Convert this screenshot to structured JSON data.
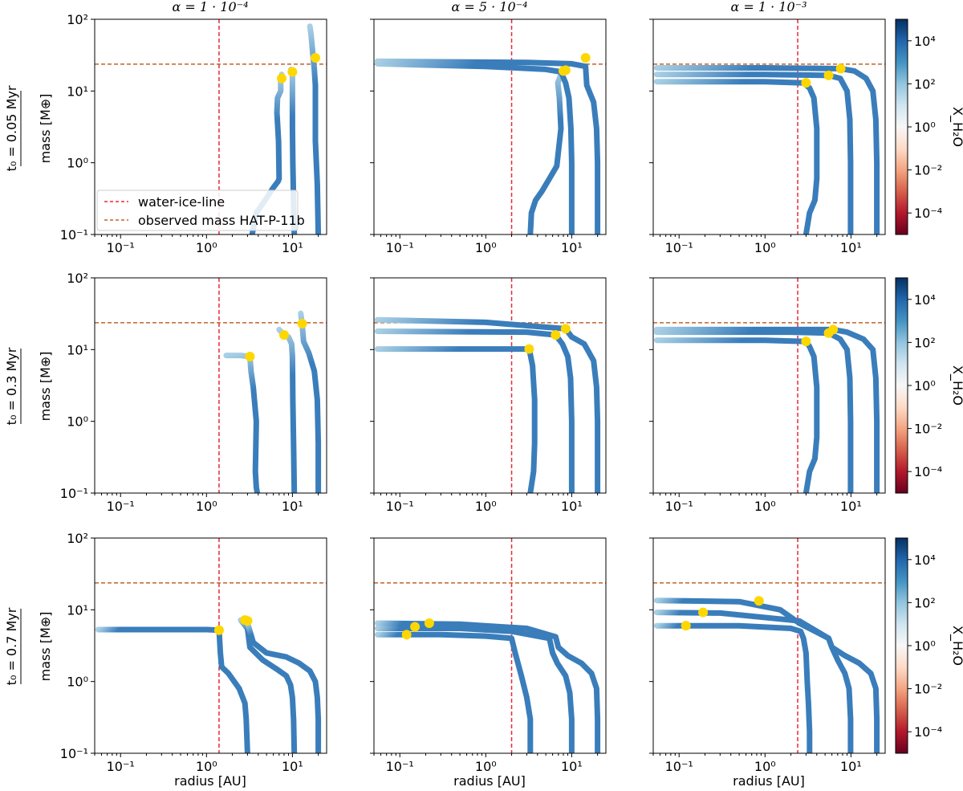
{
  "figure": {
    "column_titles": [
      "α = 1 · 10⁻⁴",
      "α = 5 · 10⁻⁴",
      "α = 1 · 10⁻³"
    ],
    "row_titles": [
      "t₀ = 0.05 Myr",
      "t₀ = 0.3 Myr",
      "t₀ = 0.7 Myr"
    ],
    "xlabel": "radius [AU]",
    "ylabel": "mass [M⊕]",
    "colorbar_label": "X_H₂O",
    "legend": {
      "ice_line": "water-ice-line",
      "observed": "observed mass HAT-P-11b"
    },
    "colors": {
      "ice_line": "#e8293a",
      "observed": "#c0642a",
      "track_dark": "#3a7dbb",
      "track_light": "#a8cfe4",
      "endpoint": "#ffd700"
    }
  },
  "chart_data": [
    {
      "type": "line",
      "row": 0,
      "col": 0,
      "xscale": "log",
      "yscale": "log",
      "xlim": [
        0.05,
        25
      ],
      "ylim": [
        0.1,
        100
      ],
      "ice_line_x": 1.4,
      "observed_mass_y": 23.7,
      "series": [
        {
          "x": [
            3.4,
            3.8,
            4.8,
            6.0,
            6.8,
            7.0,
            6.9,
            6.6,
            6.7,
            7.3,
            7.3,
            7.3,
            7.5
          ],
          "y": [
            0.1,
            0.2,
            0.3,
            0.45,
            0.55,
            0.6,
            2,
            5,
            8,
            10,
            13,
            15,
            17
          ]
        },
        {
          "x": [
            10.5,
            10.3,
            10.1,
            10.0,
            10.0,
            10.0,
            10.0,
            9.9,
            9.6
          ],
          "y": [
            0.1,
            0.3,
            1,
            3,
            8,
            12,
            16,
            18,
            20
          ]
        },
        {
          "x": [
            20,
            19.5,
            18.5,
            18.5,
            18.5,
            18.0,
            17.0,
            16.5,
            16.0
          ],
          "y": [
            0.1,
            0.5,
            2,
            6,
            12,
            20,
            40,
            60,
            80
          ]
        }
      ],
      "endpoints": [
        {
          "x": 7.5,
          "y": 15
        },
        {
          "x": 10.0,
          "y": 18.5
        },
        {
          "x": 18.5,
          "y": 29
        }
      ]
    },
    {
      "type": "line",
      "row": 0,
      "col": 1,
      "xscale": "log",
      "yscale": "log",
      "xlim": [
        0.05,
        25
      ],
      "ylim": [
        0.1,
        100
      ],
      "ice_line_x": 2.0,
      "observed_mass_y": 23.7,
      "series": [
        {
          "x": [
            3.3,
            3.4,
            3.8,
            4.5,
            5.5,
            6.7,
            7.5,
            7.2,
            6.9,
            7.5,
            8.0
          ],
          "y": [
            0.1,
            0.2,
            0.3,
            0.4,
            0.6,
            0.9,
            3,
            8,
            13,
            17,
            19
          ]
        },
        {
          "x": [
            10.0,
            10.0,
            9.8,
            9.3,
            8.5,
            7.5,
            5.0,
            1.0,
            0.2,
            0.055
          ],
          "y": [
            0.1,
            1,
            3,
            8,
            13,
            18.5,
            20,
            22,
            23,
            24
          ]
        },
        {
          "x": [
            20,
            20,
            19.5,
            18,
            15,
            14.5,
            10,
            3,
            0.3,
            0.055
          ],
          "y": [
            0.1,
            1,
            3,
            7,
            12,
            22,
            24,
            25,
            25.5,
            26
          ]
        }
      ],
      "endpoints": [
        {
          "x": 8.0,
          "y": 19
        },
        {
          "x": 8.5,
          "y": 19.5
        },
        {
          "x": 14.5,
          "y": 29
        }
      ]
    },
    {
      "type": "line",
      "row": 0,
      "col": 2,
      "xscale": "log",
      "yscale": "log",
      "xlim": [
        0.05,
        25
      ],
      "ylim": [
        0.1,
        100
      ],
      "ice_line_x": 2.4,
      "observed_mass_y": 23.7,
      "series": [
        {
          "x": [
            3.0,
            3.3,
            3.8,
            4.0,
            4.0,
            3.7,
            3.3,
            2.8,
            1.0,
            0.055
          ],
          "y": [
            0.1,
            0.2,
            0.3,
            0.6,
            3,
            8,
            11,
            13,
            13.5,
            13.5
          ]
        },
        {
          "x": [
            9.9,
            9.9,
            9.7,
            9.0,
            7.5,
            5.5,
            1.0,
            0.055
          ],
          "y": [
            0.1,
            1,
            4,
            10,
            15,
            16.5,
            17,
            17
          ]
        },
        {
          "x": [
            20,
            20,
            19.5,
            18,
            15,
            11,
            7.6,
            1.0,
            0.055
          ],
          "y": [
            0.1,
            1,
            4,
            10,
            15,
            19,
            20.5,
            21,
            21
          ]
        }
      ],
      "endpoints": [
        {
          "x": 3.0,
          "y": 13
        },
        {
          "x": 5.5,
          "y": 16.5
        },
        {
          "x": 7.6,
          "y": 20.5
        }
      ]
    },
    {
      "type": "line",
      "row": 1,
      "col": 0,
      "xscale": "log",
      "yscale": "log",
      "xlim": [
        0.05,
        25
      ],
      "ylim": [
        0.1,
        100
      ],
      "ice_line_x": 1.4,
      "observed_mass_y": 23.7,
      "series": [
        {
          "x": [
            3.9,
            3.8,
            3.7,
            3.8,
            3.5,
            3.3,
            3.2,
            2.5,
            1.7
          ],
          "y": [
            0.1,
            0.12,
            0.2,
            1,
            3,
            5,
            8,
            8.3,
            8.3
          ]
        },
        {
          "x": [
            10.5,
            10.3,
            10.1,
            10.0,
            9.8,
            9.0,
            8.0,
            7.0
          ],
          "y": [
            0.1,
            0.5,
            2,
            8,
            12,
            15,
            16,
            19
          ]
        },
        {
          "x": [
            20,
            20,
            19.5,
            18,
            15.5,
            13.5,
            13.0,
            12.5
          ],
          "y": [
            0.1,
            0.5,
            2,
            5,
            9,
            13,
            22,
            32
          ]
        }
      ],
      "endpoints": [
        {
          "x": 3.2,
          "y": 8
        },
        {
          "x": 8.0,
          "y": 16
        },
        {
          "x": 13.0,
          "y": 23
        }
      ]
    },
    {
      "type": "line",
      "row": 1,
      "col": 1,
      "xscale": "log",
      "yscale": "log",
      "xlim": [
        0.05,
        25
      ],
      "ylim": [
        0.1,
        100
      ],
      "ice_line_x": 2.0,
      "observed_mass_y": 23.7,
      "series": [
        {
          "x": [
            3.3,
            3.6,
            3.7,
            3.7,
            3.5,
            3.2,
            1.0,
            0.055
          ],
          "y": [
            0.1,
            0.2,
            0.5,
            2,
            6,
            10.2,
            10.2,
            10.2
          ]
        },
        {
          "x": [
            10.0,
            10.0,
            9.7,
            9.0,
            7.8,
            6.5,
            3.0,
            0.055
          ],
          "y": [
            0.1,
            1,
            4,
            8,
            12,
            16,
            17.5,
            18
          ]
        },
        {
          "x": [
            20,
            20,
            19.5,
            18,
            14,
            10,
            8.5,
            1.0,
            0.055
          ],
          "y": [
            0.1,
            1,
            3,
            7,
            12,
            15,
            19.5,
            24,
            26
          ]
        }
      ],
      "endpoints": [
        {
          "x": 3.2,
          "y": 10.2
        },
        {
          "x": 6.5,
          "y": 16
        },
        {
          "x": 8.5,
          "y": 19.5
        }
      ]
    },
    {
      "type": "line",
      "row": 1,
      "col": 2,
      "xscale": "log",
      "yscale": "log",
      "xlim": [
        0.05,
        25
      ],
      "ylim": [
        0.1,
        100
      ],
      "ice_line_x": 2.4,
      "observed_mass_y": 23.7,
      "series": [
        {
          "x": [
            3.0,
            3.3,
            3.8,
            4.0,
            4.0,
            3.7,
            3.3,
            3.0,
            1.0,
            0.055
          ],
          "y": [
            0.1,
            0.2,
            0.3,
            0.6,
            3,
            8,
            11,
            13,
            13.5,
            13.5
          ]
        },
        {
          "x": [
            9.9,
            9.9,
            9.7,
            9.0,
            7.5,
            5.5,
            2.0,
            0.055
          ],
          "y": [
            0.1,
            1,
            4,
            10,
            14,
            17,
            17.5,
            17.5
          ]
        },
        {
          "x": [
            20,
            20,
            19.5,
            18,
            14,
            9,
            6.2,
            2.0,
            0.055
          ],
          "y": [
            0.1,
            1,
            4,
            10,
            14,
            17.5,
            19,
            19,
            19
          ]
        }
      ],
      "endpoints": [
        {
          "x": 3.0,
          "y": 13
        },
        {
          "x": 5.5,
          "y": 17
        },
        {
          "x": 6.2,
          "y": 19
        }
      ]
    },
    {
      "type": "line",
      "row": 2,
      "col": 0,
      "xscale": "log",
      "yscale": "log",
      "xlim": [
        0.05,
        25
      ],
      "ylim": [
        0.1,
        100
      ],
      "ice_line_x": 1.4,
      "observed_mass_y": 23.7,
      "series": [
        {
          "x": [
            3.0,
            2.9,
            2.8,
            2.4,
            1.8,
            1.5,
            1.45,
            1.4,
            1.0,
            0.055
          ],
          "y": [
            0.1,
            0.3,
            0.5,
            0.8,
            1.3,
            1.6,
            2.5,
            5.2,
            5.3,
            5.3
          ]
        },
        {
          "x": [
            10.5,
            10.3,
            10.0,
            9.5,
            8.5,
            6.5,
            4.5,
            3.2,
            3.0,
            2.5
          ],
          "y": [
            0.1,
            0.3,
            0.6,
            0.9,
            1.2,
            1.5,
            2.0,
            3.0,
            5.5,
            7.2
          ]
        },
        {
          "x": [
            20,
            20,
            19.5,
            18.5,
            16,
            12,
            8.5,
            5.0,
            3.5,
            3.0
          ],
          "y": [
            0.1,
            0.3,
            0.6,
            1.0,
            1.4,
            1.8,
            2.2,
            2.5,
            3.5,
            6.5
          ]
        }
      ],
      "endpoints": [
        {
          "x": 1.4,
          "y": 5.2
        },
        {
          "x": 2.8,
          "y": 7.2
        },
        {
          "x": 3.0,
          "y": 7.0
        }
      ]
    },
    {
      "type": "line",
      "row": 2,
      "col": 1,
      "xscale": "log",
      "yscale": "log",
      "xlim": [
        0.05,
        25
      ],
      "ylim": [
        0.1,
        100
      ],
      "ice_line_x": 2.0,
      "observed_mass_y": 23.7,
      "series": [
        {
          "x": [
            3.3,
            3.3,
            3.0,
            2.6,
            2.2,
            2.0,
            1.0,
            0.3,
            0.055
          ],
          "y": [
            0.1,
            0.3,
            0.6,
            1.2,
            2.5,
            4.0,
            4.3,
            4.5,
            4.5
          ]
        },
        {
          "x": [
            10.0,
            10.0,
            9.5,
            8.5,
            6.8,
            6.0,
            5.5,
            2.0,
            0.5,
            0.055
          ],
          "y": [
            0.1,
            0.3,
            0.7,
            1.2,
            1.8,
            2.5,
            4.0,
            5.0,
            5.5,
            5.5
          ]
        },
        {
          "x": [
            20,
            20,
            19.5,
            17,
            13,
            9.0,
            7.0,
            6.5,
            3.0,
            0.5,
            0.055
          ],
          "y": [
            0.1,
            0.3,
            0.8,
            1.3,
            1.8,
            2.3,
            3.0,
            4.2,
            5.5,
            6.3,
            6.5
          ]
        }
      ],
      "endpoints": [
        {
          "x": 0.12,
          "y": 4.5
        },
        {
          "x": 0.15,
          "y": 5.8
        },
        {
          "x": 0.22,
          "y": 6.5
        }
      ]
    },
    {
      "type": "line",
      "row": 2,
      "col": 2,
      "xscale": "log",
      "yscale": "log",
      "xlim": [
        0.05,
        25
      ],
      "ylim": [
        0.1,
        100
      ],
      "ice_line_x": 2.4,
      "observed_mass_y": 23.7,
      "series": [
        {
          "x": [
            3.3,
            3.3,
            3.2,
            3.1,
            3.0,
            2.8,
            2.6,
            2.0,
            0.5,
            0.055
          ],
          "y": [
            0.1,
            0.2,
            0.5,
            1.0,
            2.5,
            4.0,
            5.0,
            5.5,
            6.0,
            6.0
          ]
        },
        {
          "x": [
            9.9,
            9.9,
            9.5,
            8.5,
            7.0,
            6.0,
            5.5,
            2.5,
            0.3,
            0.055
          ],
          "y": [
            0.1,
            0.3,
            0.8,
            1.3,
            2.0,
            3.0,
            4.0,
            7.0,
            9.0,
            9.2
          ]
        },
        {
          "x": [
            20,
            20,
            19.5,
            17,
            12.5,
            8.5,
            6.0,
            5.5,
            2.5,
            1.5,
            0.5,
            0.055
          ],
          "y": [
            0.1,
            0.3,
            0.8,
            1.3,
            1.8,
            2.3,
            3.0,
            4.0,
            6.5,
            10,
            13,
            13.5
          ]
        }
      ],
      "endpoints": [
        {
          "x": 0.12,
          "y": 6.0
        },
        {
          "x": 0.19,
          "y": 9.2
        },
        {
          "x": 0.85,
          "y": 13.3
        }
      ]
    }
  ],
  "colorbar": {
    "scale": "log",
    "range": [
      1e-05,
      100000
    ],
    "colors": [
      "#67001f",
      "#b2182b",
      "#d6604d",
      "#f4a582",
      "#fddbc7",
      "#f7f7f7",
      "#d1e5f0",
      "#92c5de",
      "#4393c3",
      "#2166ac",
      "#053061"
    ]
  }
}
